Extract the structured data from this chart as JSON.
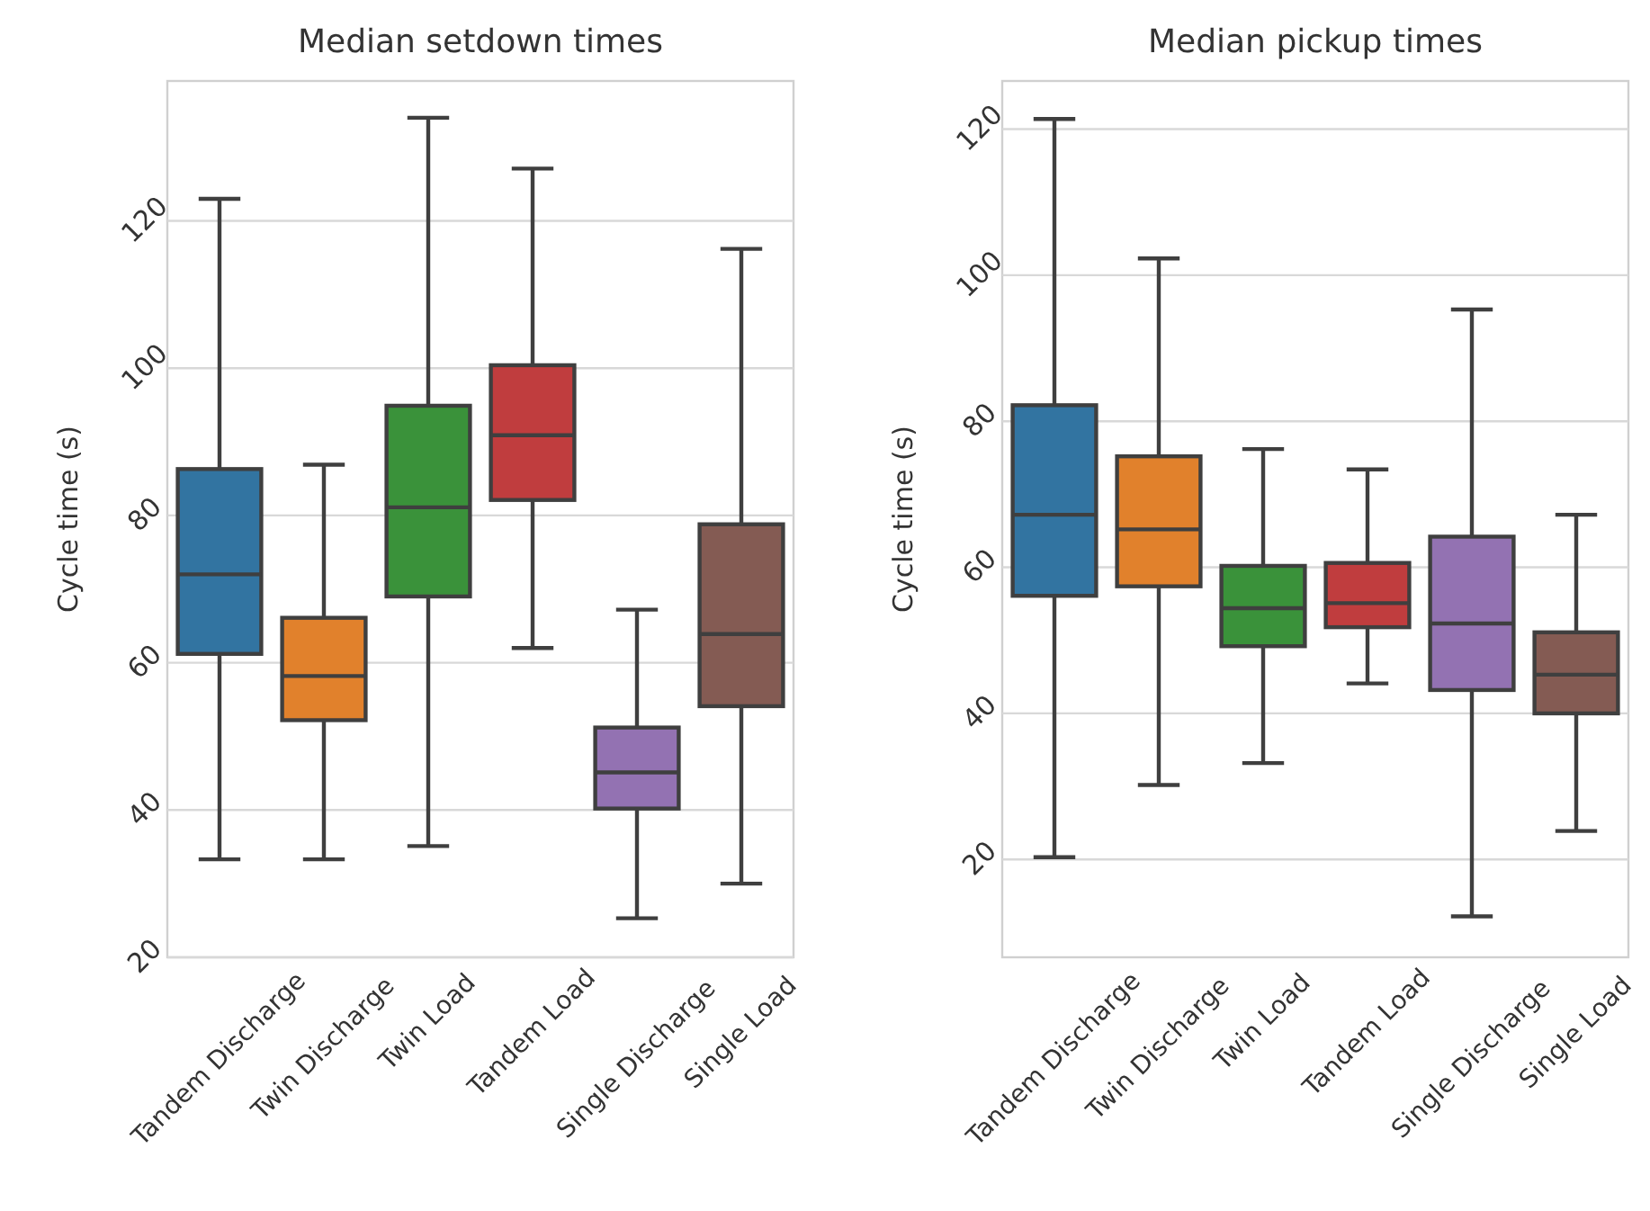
{
  "chart_data": [
    {
      "type": "box",
      "title": "Median setdown times",
      "ylabel": "Cycle time (s)",
      "categories": [
        "Tandem Discharge",
        "Twin Discharge",
        "Twin Load",
        "Tandem Load",
        "Single Discharge",
        "Single Load"
      ],
      "colors": [
        "#3274a1",
        "#e1812c",
        "#3a923a",
        "#c03d3e",
        "#9372b2",
        "#845b53"
      ],
      "ylim": [
        20,
        139
      ],
      "yticks": [
        20,
        40,
        60,
        80,
        100,
        120
      ],
      "grid": "y",
      "boxes": [
        {
          "low": 33.3,
          "q1": 61.2,
          "median": 72,
          "q3": 86.3,
          "high": 123
        },
        {
          "low": 33.3,
          "q1": 52.2,
          "median": 58.2,
          "q3": 66.1,
          "high": 86.9
        },
        {
          "low": 35.1,
          "q1": 69,
          "median": 81.1,
          "q3": 94.9,
          "high": 134
        },
        {
          "low": 62,
          "q1": 82.1,
          "median": 90.9,
          "q3": 100.4,
          "high": 127.1
        },
        {
          "low": 25.3,
          "q1": 40.2,
          "median": 45.1,
          "q3": 51.2,
          "high": 67.2
        },
        {
          "low": 30,
          "q1": 54.1,
          "median": 63.9,
          "q3": 78.8,
          "high": 116.2
        }
      ]
    },
    {
      "type": "box",
      "title": "Median pickup times",
      "ylabel": "Cycle time (s)",
      "categories": [
        "Tandem Discharge",
        "Twin Discharge",
        "Twin Load",
        "Tandem Load",
        "Single Discharge",
        "Single Load"
      ],
      "colors": [
        "#3274a1",
        "#e1812c",
        "#3a923a",
        "#c03d3e",
        "#9372b2",
        "#845b53"
      ],
      "ylim": [
        6.6,
        126.6
      ],
      "yticks": [
        20,
        40,
        60,
        80,
        100,
        120
      ],
      "grid": "y",
      "boxes": [
        {
          "low": 20.3,
          "q1": 56.1,
          "median": 67.2,
          "q3": 82.2,
          "high": 121.4
        },
        {
          "low": 30.2,
          "q1": 57.4,
          "median": 65.2,
          "q3": 75.2,
          "high": 102.3
        },
        {
          "low": 33.2,
          "q1": 49.2,
          "median": 54.4,
          "q3": 60.2,
          "high": 76.2
        },
        {
          "low": 44.1,
          "q1": 51.8,
          "median": 55.1,
          "q3": 60.6,
          "high": 73.4
        },
        {
          "low": 12.2,
          "q1": 43.2,
          "median": 52.3,
          "q3": 64.2,
          "high": 95.3
        },
        {
          "low": 23.9,
          "q1": 40,
          "median": 45.3,
          "q3": 51.1,
          "high": 67.2
        }
      ]
    }
  ]
}
